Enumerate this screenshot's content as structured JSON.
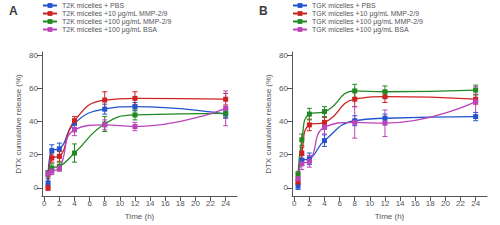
{
  "chart_data": [
    {
      "type": "line",
      "title": "A",
      "xlabel": "Time (h)",
      "ylabel": "DTX cumulative release (%)",
      "xlim": [
        -0.3,
        25.5
      ],
      "ylim": [
        -5,
        82
      ],
      "xticks": [
        0,
        2,
        4,
        6,
        8,
        10,
        12,
        14,
        16,
        18,
        20,
        22,
        24
      ],
      "yticks": [
        0,
        20,
        40,
        60,
        80
      ],
      "grid": false,
      "legend": "upper left",
      "x": [
        0.5,
        1,
        2,
        4,
        8,
        12,
        24
      ],
      "series": [
        {
          "name": "T2K micelles + PBS",
          "color": "#2255cc",
          "marker": "square",
          "values": [
            3.0,
            22.5,
            23.5,
            39.0,
            47.5,
            49.0,
            44.5
          ],
          "yerr": [
            2.5,
            3.5,
            3.5,
            2.5,
            3.0,
            2.5,
            2.5
          ]
        },
        {
          "name": "T2K micelles +10 μg/mL MMP-2/9",
          "color": "#cc2222",
          "marker": "square",
          "values": [
            0.0,
            18.0,
            19.0,
            40.5,
            53.0,
            54.0,
            53.5
          ],
          "yerr": [
            1.5,
            2.5,
            3.0,
            2.5,
            5.0,
            4.0,
            3.5
          ]
        },
        {
          "name": "T2K micelles +100 μg/mL MMP-2/9",
          "color": "#228822",
          "marker": "square",
          "values": [
            8.5,
            12.0,
            13.0,
            21.0,
            38.5,
            44.0,
            45.0
          ],
          "yerr": [
            2.0,
            2.5,
            2.5,
            5.5,
            4.5,
            3.0,
            2.5
          ]
        },
        {
          "name": "T2K micelles +100 μg/mL BSA",
          "color": "#bb44bb",
          "marker": "square",
          "values": [
            8.5,
            10.0,
            12.0,
            35.0,
            38.0,
            37.0,
            48.0
          ],
          "yerr": [
            1.5,
            2.0,
            2.0,
            3.5,
            3.0,
            2.5,
            10.5
          ]
        }
      ]
    },
    {
      "type": "line",
      "title": "B",
      "xlabel": "Time (h)",
      "ylabel": "DTX cumulative release (%)",
      "xlim": [
        -0.3,
        25.5
      ],
      "ylim": [
        -5,
        82
      ],
      "xticks": [
        0,
        2,
        4,
        6,
        8,
        10,
        12,
        14,
        16,
        18,
        20,
        22,
        24
      ],
      "yticks": [
        0,
        20,
        40,
        60,
        80
      ],
      "grid": false,
      "legend": "upper left",
      "x": [
        0.5,
        1,
        2,
        4,
        8,
        12,
        24
      ],
      "series": [
        {
          "name": "TGK micelles + PBS",
          "color": "#2255cc",
          "marker": "square",
          "values": [
            1.0,
            16.5,
            17.5,
            28.5,
            40.5,
            42.0,
            43.0
          ],
          "yerr": [
            2.0,
            3.0,
            3.5,
            3.5,
            3.0,
            2.5,
            2.5
          ]
        },
        {
          "name": "TGK micelles +10 μg/mL MMP-2/9",
          "color": "#cc2222",
          "marker": "square",
          "values": [
            3.5,
            21.0,
            38.0,
            39.5,
            53.5,
            55.0,
            53.5
          ],
          "yerr": [
            1.5,
            3.5,
            3.5,
            3.0,
            4.5,
            3.5,
            3.0
          ]
        },
        {
          "name": "TGK micelles +100 μg/mL MMP-2/9",
          "color": "#228822",
          "marker": "square",
          "values": [
            8.0,
            29.0,
            44.5,
            46.0,
            58.5,
            58.0,
            59.0
          ],
          "yerr": [
            2.0,
            3.5,
            3.5,
            3.0,
            4.0,
            3.5,
            3.0
          ]
        },
        {
          "name": "TGK micelles +100 μg/mL BSA",
          "color": "#bb44bb",
          "marker": "square",
          "values": [
            5.5,
            14.5,
            16.0,
            36.5,
            39.5,
            39.0,
            52.0
          ],
          "yerr": [
            3.0,
            3.5,
            3.5,
            4.0,
            9.5,
            8.0,
            9.0
          ]
        }
      ]
    }
  ]
}
